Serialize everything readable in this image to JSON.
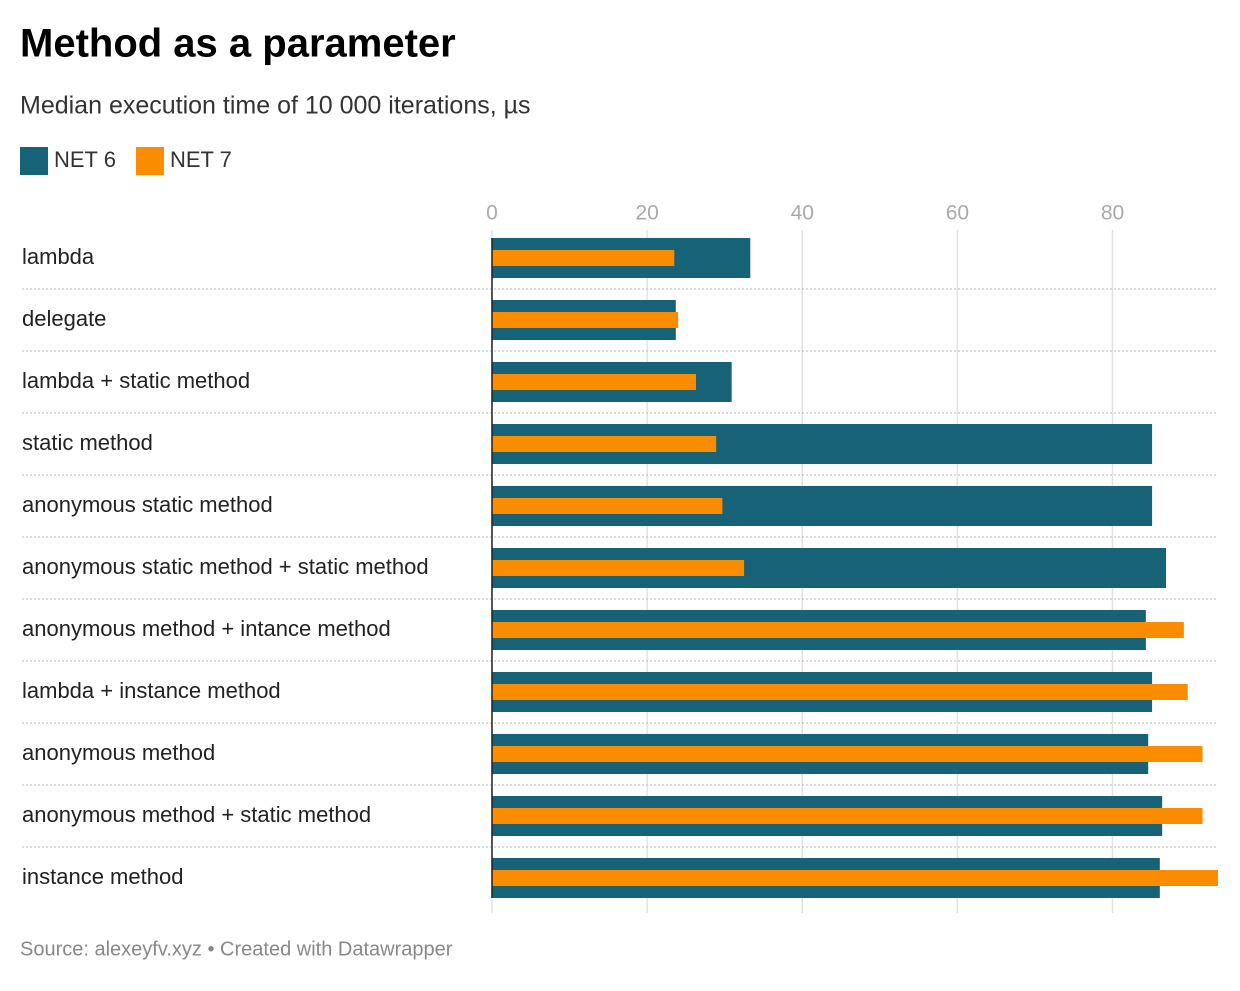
{
  "chart_data": {
    "type": "grouped-bar-horizontal",
    "title": "Method as a parameter",
    "subtitle": "Median execution time of 10 000 iterations, µs",
    "source": "Source: alexeyfv.xyz • Created with Datawrapper",
    "categories": [
      "lambda",
      "delegate",
      "lambda + static method",
      "static method",
      "anonymous static method",
      "anonymous static method + static method",
      "anonymous method + intance method",
      "lambda + instance method",
      "anonymous method",
      "anonymous method + static method",
      "instance method"
    ],
    "series": [
      {
        "name": "NET 6",
        "color": "#186278",
        "values": [
          33.3,
          23.7,
          30.9,
          85.1,
          85.1,
          86.9,
          84.3,
          85.1,
          84.6,
          86.4,
          86.1
        ]
      },
      {
        "name": "NET 7",
        "color": "#fa8c00",
        "values": [
          23.5,
          24.0,
          26.3,
          28.9,
          29.7,
          32.5,
          89.2,
          89.7,
          91.6,
          91.6,
          93.6
        ]
      }
    ],
    "xlim": [
      0,
      93.6
    ],
    "xticks": [
      0,
      20,
      40,
      60,
      80
    ],
    "grid": true
  }
}
